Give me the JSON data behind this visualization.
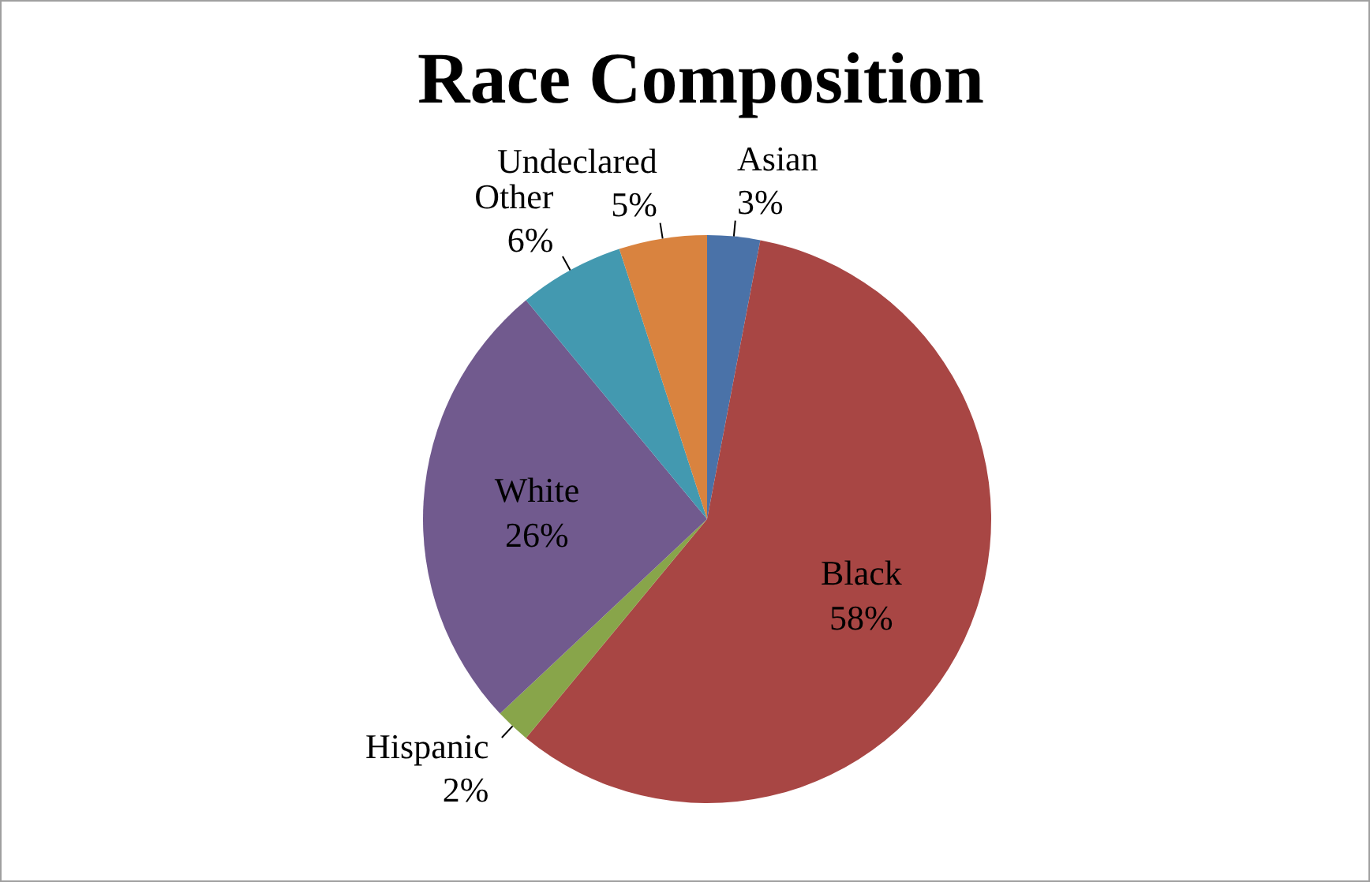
{
  "chart_data": {
    "type": "pie",
    "title": "Race Composition",
    "categories": [
      "Asian",
      "Black",
      "Hispanic",
      "White",
      "Other",
      "Undeclared"
    ],
    "values": [
      3,
      58,
      2,
      26,
      6,
      5
    ],
    "colors": [
      "#4a72a8",
      "#a84644",
      "#88a54a",
      "#715a8e",
      "#4399b0",
      "#d9833f"
    ],
    "value_labels": [
      "3%",
      "58%",
      "2%",
      "26%",
      "6%",
      "5%"
    ],
    "legend": false
  }
}
